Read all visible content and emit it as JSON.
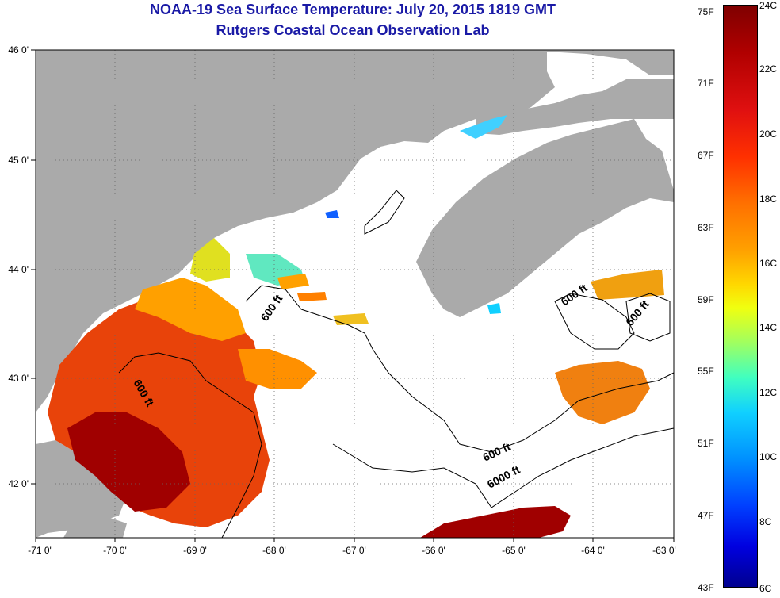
{
  "title_line1": "NOAA-19 Sea Surface Temperature:  July 20, 2015 1819 GMT",
  "title_line2": "Rutgers Coastal Ocean Observation Lab",
  "longitude_ticks": [
    "-71 0'",
    "-70 0'",
    "-69 0'",
    "-68 0'",
    "-67 0'",
    "-66 0'",
    "-65 0'",
    "-64 0'",
    "-63 0'"
  ],
  "latitude_ticks": [
    "46 0'",
    "45 0'",
    "44 0'",
    "43 0'",
    "42 0'"
  ],
  "contour_labels": [
    "600 ft",
    "600 ft",
    "600 ft",
    "600 ft",
    "6000 ft",
    "600 ft"
  ],
  "colorbar": {
    "fahrenheit": [
      "75F",
      "71F",
      "67F",
      "63F",
      "59F",
      "55F",
      "51F",
      "47F",
      "43F"
    ],
    "celsius": [
      "24C",
      "22C",
      "20C",
      "18C",
      "16C",
      "14C",
      "12C",
      "10C",
      "8C",
      "6C"
    ]
  },
  "colors": {
    "land": "#aaaaaa",
    "no_data": "#ffffff",
    "title": "#1a1aa6"
  }
}
